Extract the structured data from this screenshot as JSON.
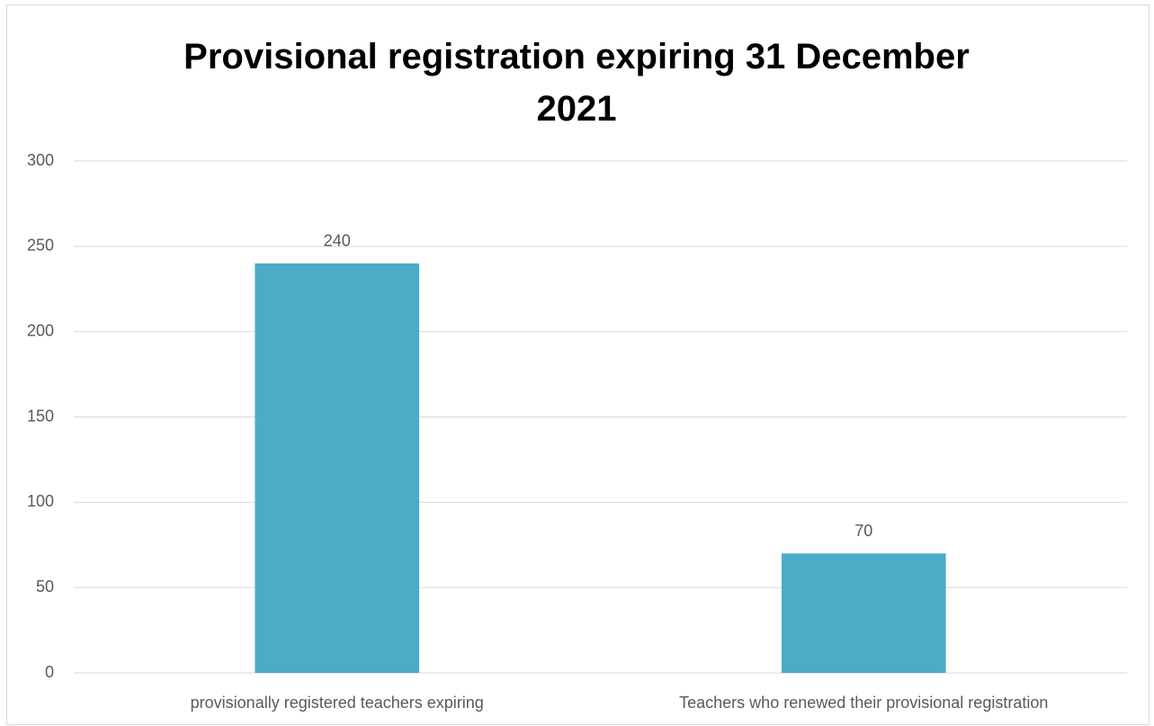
{
  "chart_data": {
    "type": "bar",
    "title": "Provisional registration expiring 31 December 2021",
    "categories": [
      "provisionally registered teachers expiring",
      "Teachers who renewed their provisional registration"
    ],
    "values": [
      240,
      70
    ],
    "color": "#4bacc6",
    "ylim": [
      0,
      300
    ],
    "yticks": [
      0,
      50,
      100,
      150,
      200,
      250,
      300
    ],
    "grid": true
  }
}
